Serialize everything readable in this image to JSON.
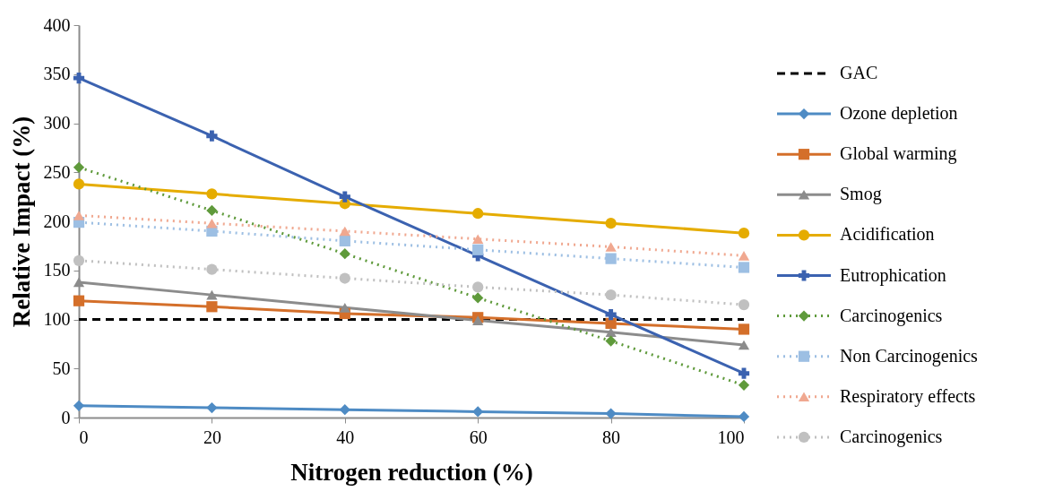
{
  "chart_data": {
    "type": "line",
    "xlabel": "Nitrogen reduction (%)",
    "ylabel": "Relative Impact (%)",
    "x": [
      0,
      20,
      40,
      60,
      80,
      100
    ],
    "xlim": [
      0,
      100
    ],
    "xticks": [
      0,
      20,
      40,
      60,
      80,
      100
    ],
    "ylim": [
      0,
      400
    ],
    "yticks": [
      0,
      50,
      100,
      150,
      200,
      250,
      300,
      350,
      400
    ],
    "grid": false,
    "legend": "right",
    "series": [
      {
        "name": "GAC",
        "color": "#000000",
        "line_style": "dashed",
        "marker": "none",
        "values": [
          100,
          100,
          100,
          100,
          100,
          100
        ]
      },
      {
        "name": "Ozone depletion",
        "color": "#4e8bc4",
        "line_style": "solid",
        "marker": "diamond",
        "values": [
          12,
          10,
          8,
          6,
          4,
          1
        ]
      },
      {
        "name": "Global warming",
        "color": "#d46f2a",
        "line_style": "solid",
        "marker": "square",
        "values": [
          119,
          113,
          106,
          102,
          96,
          90
        ]
      },
      {
        "name": "Smog",
        "color": "#8c8c8c",
        "line_style": "solid",
        "marker": "triangle",
        "values": [
          138,
          125,
          112,
          99,
          87,
          74
        ]
      },
      {
        "name": "Acidification",
        "color": "#e5ac00",
        "line_style": "solid",
        "marker": "circle",
        "values": [
          238,
          228,
          218,
          208,
          198,
          188
        ]
      },
      {
        "name": "Eutrophication",
        "color": "#3b62b0",
        "line_style": "solid",
        "marker": "cross",
        "values": [
          346,
          287,
          225,
          165,
          105,
          45
        ]
      },
      {
        "name": "Carcinogenics",
        "color": "#5f9a3b",
        "line_style": "dotted",
        "marker": "diamond",
        "values": [
          255,
          211,
          167,
          122,
          78,
          33
        ]
      },
      {
        "name": "Non Carcinogenics",
        "color": "#9dbfe3",
        "line_style": "dotted",
        "marker": "square",
        "values": [
          199,
          190,
          180,
          171,
          162,
          153
        ]
      },
      {
        "name": "Respiratory effects",
        "color": "#f0a890",
        "line_style": "dotted",
        "marker": "triangle",
        "values": [
          206,
          198,
          190,
          182,
          174,
          165
        ]
      },
      {
        "name": "Carcinogenics",
        "color": "#c0c0c0",
        "line_style": "dotted",
        "marker": "circle",
        "values": [
          160,
          151,
          142,
          133,
          125,
          115
        ]
      }
    ]
  }
}
